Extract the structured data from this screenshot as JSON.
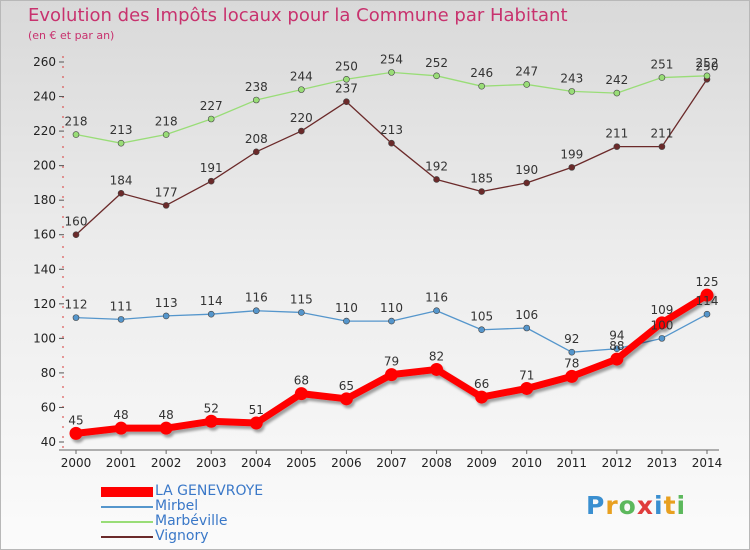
{
  "chart_data": {
    "type": "line",
    "title": "Evolution des Impôts locaux pour la Commune par Habitant",
    "subtitle": "(en € et par an)",
    "xlabel": "",
    "ylabel": "",
    "x": [
      2000,
      2001,
      2002,
      2003,
      2004,
      2005,
      2006,
      2007,
      2008,
      2009,
      2010,
      2011,
      2012,
      2013,
      2014
    ],
    "ylim": [
      40,
      260
    ],
    "yticks": [
      40,
      60,
      80,
      100,
      120,
      140,
      160,
      180,
      200,
      220,
      240,
      260
    ],
    "grid": false,
    "legend_position": "bottom-left",
    "series": [
      {
        "name": "LA GENEVROYE",
        "color": "#ff0000",
        "values": [
          45,
          48,
          48,
          52,
          51,
          68,
          65,
          79,
          82,
          66,
          71,
          78,
          88,
          109,
          125
        ]
      },
      {
        "name": "Mirbel",
        "color": "#5596cc",
        "values": [
          112,
          111,
          113,
          114,
          116,
          115,
          110,
          110,
          116,
          105,
          106,
          92,
          94,
          100,
          114
        ]
      },
      {
        "name": "Marbéville",
        "color": "#99dd77",
        "values": [
          218,
          213,
          218,
          227,
          238,
          244,
          250,
          254,
          252,
          246,
          247,
          243,
          242,
          251,
          252
        ]
      },
      {
        "name": "Vignory",
        "color": "#6b2a2a",
        "values": [
          160,
          184,
          177,
          191,
          208,
          220,
          237,
          213,
          192,
          185,
          190,
          199,
          211,
          211,
          250
        ]
      }
    ]
  },
  "logo": {
    "text": "Proxiti",
    "colors": [
      "#3a8fd0",
      "#e8a020",
      "#5cb85c",
      "#e03c3c",
      "#3a8fd0",
      "#e8a020",
      "#5cb85c"
    ]
  }
}
